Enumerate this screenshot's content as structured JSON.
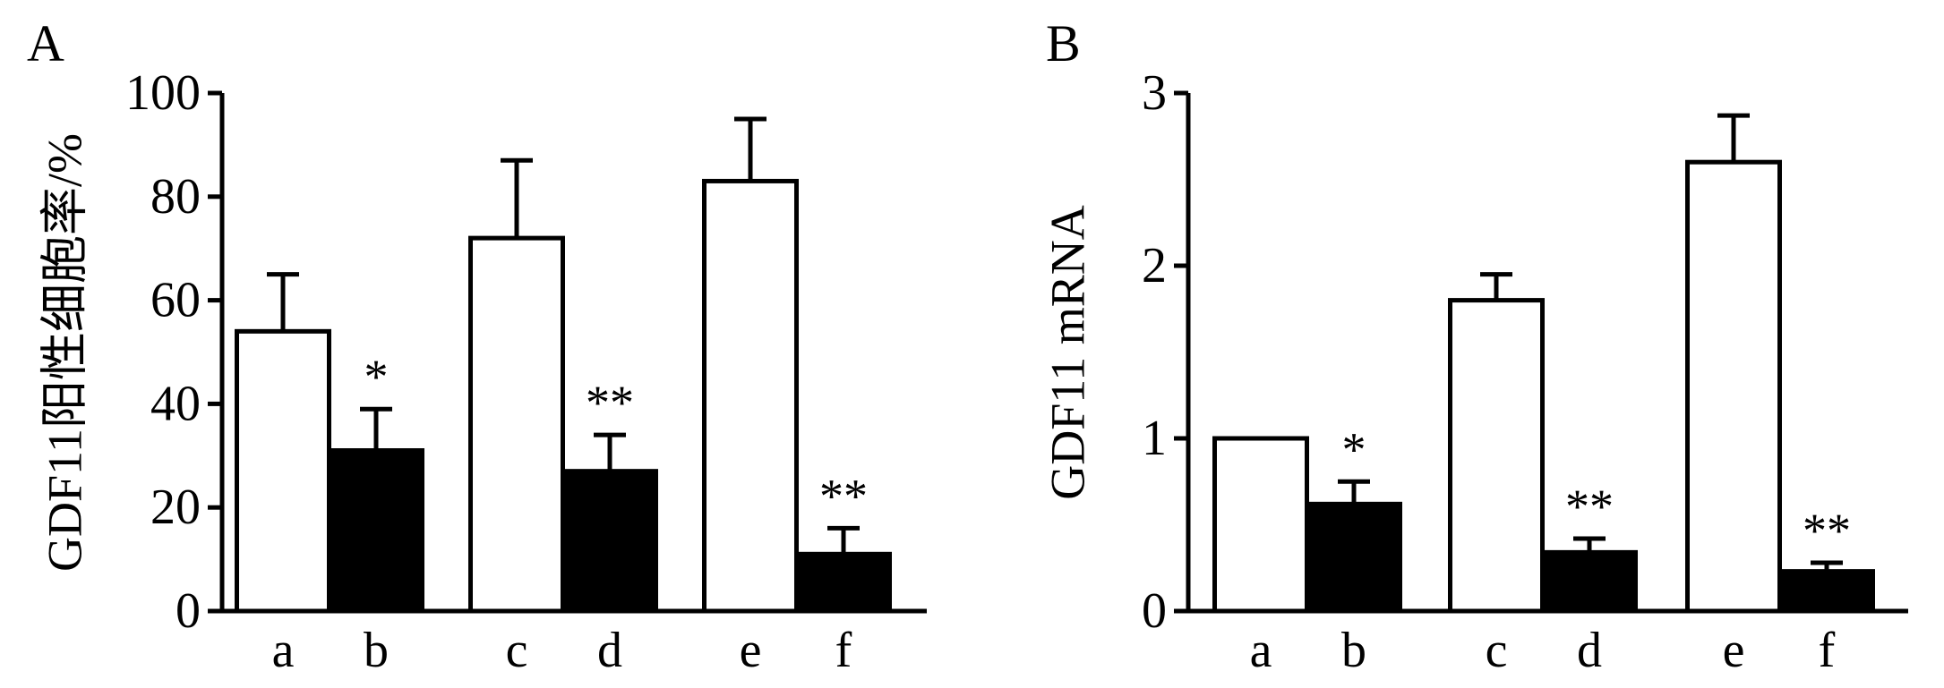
{
  "chart_data": [
    {
      "panel_label": "A",
      "type": "bar",
      "ylabel": "GDF11阳性细胞率/%",
      "xlabel": "",
      "ylim": [
        0,
        100
      ],
      "yticks": [
        0,
        20,
        40,
        60,
        80,
        100
      ],
      "categories": [
        "a",
        "b",
        "c",
        "d",
        "e",
        "f"
      ],
      "values": [
        54,
        31,
        72,
        27,
        83,
        11
      ],
      "errors": [
        11,
        8,
        15,
        7,
        12,
        5
      ],
      "fills": [
        "#ffffff",
        "#000000",
        "#ffffff",
        "#000000",
        "#ffffff",
        "#000000"
      ],
      "significance": [
        "",
        "*",
        "",
        "**",
        "",
        "**"
      ]
    },
    {
      "panel_label": "B",
      "type": "bar",
      "ylabel": "GDF11 mRNA",
      "xlabel": "",
      "ylim": [
        0,
        3
      ],
      "yticks": [
        0,
        1,
        2,
        3
      ],
      "categories": [
        "a",
        "b",
        "c",
        "d",
        "e",
        "f"
      ],
      "values": [
        1.0,
        0.62,
        1.8,
        0.34,
        2.6,
        0.23
      ],
      "errors": [
        0,
        0.13,
        0.15,
        0.08,
        0.27,
        0.05
      ],
      "fills": [
        "#ffffff",
        "#000000",
        "#ffffff",
        "#000000",
        "#ffffff",
        "#000000"
      ],
      "significance": [
        "",
        "*",
        "",
        "**",
        "",
        "**"
      ]
    }
  ]
}
